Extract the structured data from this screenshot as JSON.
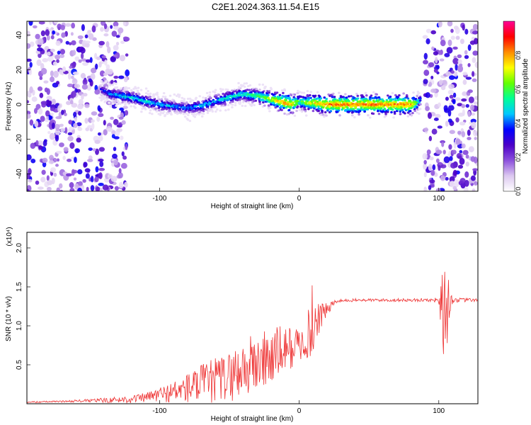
{
  "title": "C2E1.2024.363.11.54.E15",
  "chart_data": [
    {
      "type": "heatmap",
      "xlabel": "Height of straight line (km)",
      "ylabel": "Frequency (Hz)",
      "xlim": [
        -195,
        128
      ],
      "ylim": [
        -50,
        48
      ],
      "x_ticks": [
        -100,
        0,
        100
      ],
      "x_tick_labels": [
        "-100",
        "0",
        "100"
      ],
      "y_ticks": [
        -40,
        -20,
        0,
        20,
        40
      ],
      "y_tick_labels": [
        "-40",
        "-20",
        "0",
        "20",
        "40"
      ],
      "colorbar": {
        "label": "Normalized spectral amplitude",
        "range": [
          0,
          1
        ],
        "ticks": [
          0.0,
          0.2,
          0.4,
          0.6,
          0.8
        ],
        "tick_labels": [
          "0.0",
          "0.2",
          "0.4",
          "0.6",
          "0.8"
        ],
        "colors": [
          "#ffffff",
          "#dcc8f0",
          "#8c50dc",
          "#4b00c8",
          "#0000ff",
          "#00c8ff",
          "#00ff96",
          "#64ff00",
          "#ffff00",
          "#ff8c00",
          "#ff0000",
          "#ff0096"
        ]
      },
      "noise_regions": [
        [
          -195,
          -123
        ],
        [
          90,
          128
        ]
      ],
      "ridge": {
        "x": [
          -142,
          -135,
          -128,
          -120,
          -110,
          -100,
          -90,
          -80,
          -70,
          -60,
          -50,
          -40,
          -30,
          -20,
          -10,
          -5,
          0,
          5,
          10,
          20,
          40,
          60,
          80,
          85,
          87
        ],
        "frequency": [
          9,
          6,
          5,
          4,
          2,
          0,
          -1,
          -2,
          -1,
          2,
          4,
          6,
          5,
          3,
          1,
          0,
          2,
          1,
          1,
          0,
          0,
          0,
          0,
          1,
          3
        ],
        "amplitude": [
          0.35,
          0.45,
          0.5,
          0.5,
          0.5,
          0.5,
          0.45,
          0.45,
          0.5,
          0.5,
          0.55,
          0.55,
          0.6,
          0.7,
          0.85,
          0.8,
          0.6,
          0.7,
          0.75,
          0.85,
          0.85,
          0.85,
          0.85,
          0.6,
          0.4
        ]
      }
    },
    {
      "type": "line",
      "xlabel": "Height of straight line (km)",
      "ylabel": "SNR (10 * v/v)",
      "scale_label": "(x10⁴)",
      "xlim": [
        -195,
        128
      ],
      "ylim": [
        0,
        2.2
      ],
      "x_ticks": [
        -100,
        0,
        100
      ],
      "x_tick_labels": [
        "-100",
        "0",
        "100"
      ],
      "y_ticks": [
        0.5,
        1.0,
        1.5,
        2.0
      ],
      "y_tick_labels": [
        "0.5",
        "1.0",
        "1.5",
        "2.0"
      ],
      "color": "#ee3333",
      "series": [
        {
          "x": [
            -195,
            -170,
            -150,
            -130,
            -120,
            -110,
            -100,
            -90,
            -80,
            -70,
            -60,
            -50,
            -40,
            -30,
            -20,
            -10,
            0,
            5,
            8,
            10,
            12,
            20,
            25,
            30,
            40,
            60,
            80,
            95,
            100,
            103,
            105,
            107,
            110,
            128
          ],
          "mean": [
            0.02,
            0.03,
            0.04,
            0.05,
            0.06,
            0.08,
            0.12,
            0.15,
            0.2,
            0.25,
            0.3,
            0.35,
            0.45,
            0.52,
            0.6,
            0.7,
            0.75,
            0.8,
            0.95,
            1.05,
            1.1,
            1.2,
            1.3,
            1.32,
            1.33,
            1.33,
            1.33,
            1.33,
            1.33,
            1.3,
            1.2,
            1.3,
            1.33,
            1.33
          ],
          "spread": [
            0.01,
            0.01,
            0.02,
            0.04,
            0.05,
            0.06,
            0.1,
            0.14,
            0.2,
            0.26,
            0.3,
            0.32,
            0.4,
            0.4,
            0.4,
            0.3,
            0.25,
            0.2,
            0.45,
            0.6,
            0.3,
            0.08,
            0.03,
            0.02,
            0.02,
            0.02,
            0.02,
            0.02,
            0.05,
            0.6,
            1.0,
            0.3,
            0.03,
            0.02
          ]
        }
      ]
    }
  ]
}
